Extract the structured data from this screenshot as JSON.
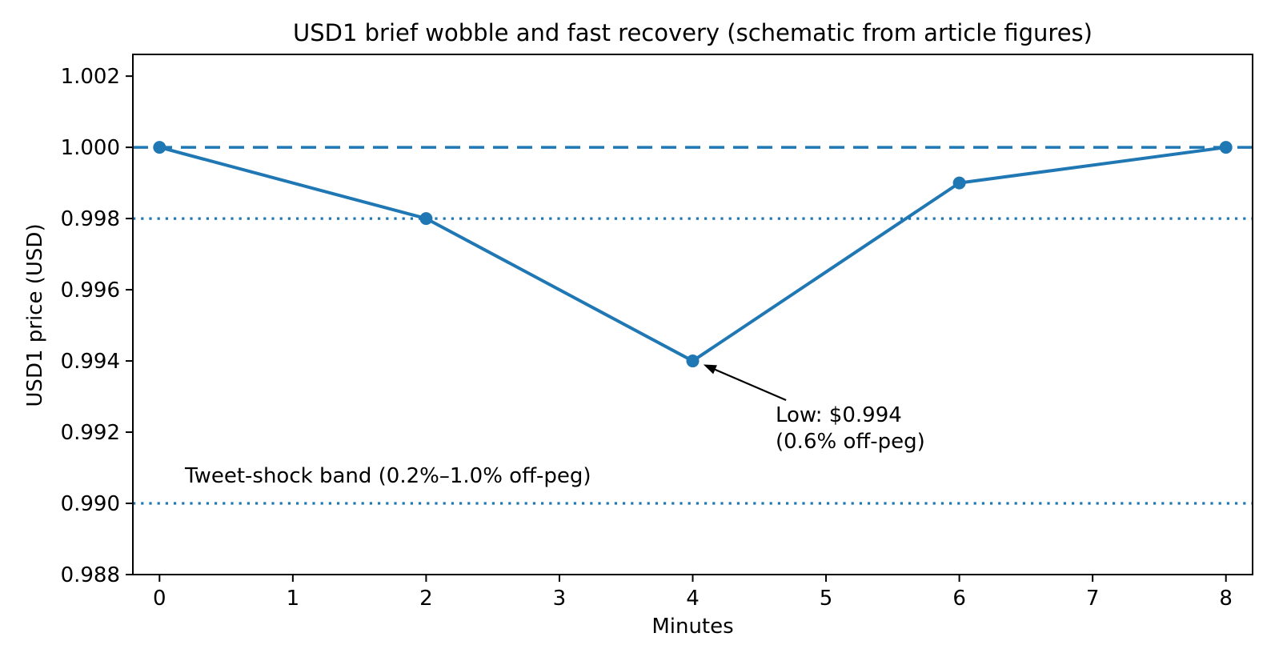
{
  "figure": {
    "background": "#ffffff"
  },
  "chart_data": {
    "type": "line",
    "title": "USD1 brief wobble and fast recovery (schematic from article figures)",
    "xlabel": "Minutes",
    "ylabel": "USD1 price (USD)",
    "series": [
      {
        "name": "USD1 price",
        "x": [
          0,
          2,
          4,
          6,
          8
        ],
        "y": [
          1.0,
          0.998,
          0.994,
          0.999,
          1.0
        ],
        "color": "#1f77b4",
        "marker": "circle"
      }
    ],
    "xlim": [
      -0.2,
      8.2
    ],
    "ylim": [
      0.988,
      1.00261
    ],
    "xticks": [
      0,
      1,
      2,
      3,
      4,
      5,
      6,
      7,
      8
    ],
    "xtick_labels": [
      "0",
      "1",
      "2",
      "3",
      "4",
      "5",
      "6",
      "7",
      "8"
    ],
    "ytick_values": [
      0.988,
      0.99,
      0.992,
      0.994,
      0.996,
      0.998,
      1.0,
      1.002
    ],
    "ytick_labels": [
      "0.988",
      "0.990",
      "0.992",
      "0.994",
      "0.996",
      "0.998",
      "1.000",
      "1.002"
    ],
    "grid": false,
    "legend": "none",
    "ref_lines": [
      {
        "name": "peg-line",
        "y": 1.0,
        "style": "dashed",
        "color": "#1f77b4"
      },
      {
        "name": "band-upper",
        "y": 0.998,
        "style": "dotted",
        "color": "#1f77b4"
      },
      {
        "name": "band-lower",
        "y": 0.99,
        "style": "dotted",
        "color": "#1f77b4"
      }
    ],
    "annotation": {
      "lines": [
        "Low: $0.994",
        "(0.6% off-peg)"
      ],
      "line1": "Low: $0.994",
      "line2": "(0.6% off-peg)",
      "point_xy": [
        4,
        0.994
      ],
      "arrow_from_xy": [
        4.7,
        0.9929
      ],
      "arrow_to_xy": [
        4.08,
        0.9939
      ],
      "color": "#000000"
    },
    "band_label": {
      "text": "Tweet-shock band (0.2%–1.0% off-peg)",
      "xy": [
        0.19,
        0.9906
      ]
    }
  },
  "colors": {
    "accent": "#1f77b4",
    "text": "#000000",
    "axis": "#000000",
    "background": "#ffffff"
  }
}
